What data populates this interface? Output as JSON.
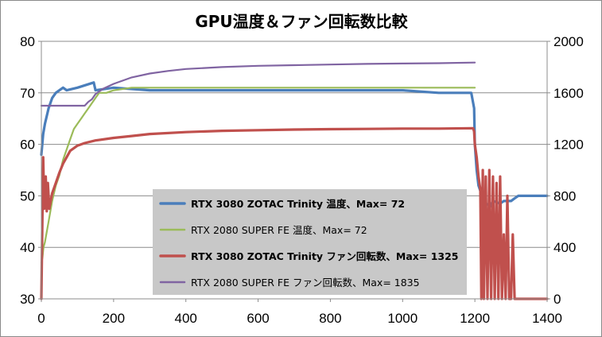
{
  "chart_data": {
    "type": "line",
    "title": "GPU温度＆ファン回転数比較",
    "x_axis": {
      "min": 0,
      "max": 1400,
      "ticks": [
        0,
        200,
        400,
        600,
        800,
        1000,
        1200,
        1400
      ]
    },
    "y_axis_left": {
      "min": 30,
      "max": 80,
      "ticks": [
        30,
        40,
        50,
        60,
        70,
        80
      ]
    },
    "y_axis_right": {
      "min": 0,
      "max": 2000,
      "ticks": [
        0,
        400,
        800,
        1200,
        1600,
        2000
      ]
    },
    "grid": "horizontal",
    "legend_position": "center",
    "series": [
      {
        "name": "RTX 3080 ZOTAC Trinity 温度、Max= 72",
        "axis": "left",
        "color": "#4a7ebb",
        "bold": true,
        "x": [
          0,
          5,
          10,
          20,
          30,
          40,
          50,
          60,
          70,
          100,
          145,
          150,
          200,
          300,
          500,
          700,
          900,
          1000,
          1100,
          1190,
          1198,
          1200,
          1205,
          1210,
          1220,
          1230,
          1245,
          1250,
          1270,
          1280,
          1300,
          1310,
          1320,
          1340,
          1360,
          1400
        ],
        "y": [
          58,
          62,
          64,
          67,
          69,
          70,
          70.5,
          71,
          70.5,
          71,
          72,
          70.5,
          71,
          70.5,
          70.5,
          70.5,
          70.5,
          70.5,
          70,
          70,
          67,
          60,
          55,
          52,
          50,
          48.5,
          48,
          49,
          48.5,
          49,
          49,
          49.5,
          50,
          50,
          50,
          50
        ]
      },
      {
        "name": "RTX 2080 SUPER FE 温度、Max= 72",
        "axis": "left",
        "color": "#9bbb59",
        "bold": false,
        "x": [
          0,
          3,
          6,
          10,
          20,
          30,
          40,
          50,
          60,
          70,
          80,
          90,
          100,
          110,
          120,
          130,
          140,
          150,
          160,
          170,
          180,
          200,
          250,
          300,
          400,
          500,
          600,
          700,
          800,
          900,
          1000,
          1100,
          1200
        ],
        "y": [
          37,
          38,
          40,
          41,
          45,
          49,
          52,
          54,
          57,
          59,
          61,
          63,
          64,
          65,
          66,
          67,
          68,
          69,
          70,
          70,
          70,
          70.5,
          71,
          71,
          71,
          71,
          71,
          71,
          71,
          71,
          71,
          71,
          71
        ]
      },
      {
        "name": "RTX 3080 ZOTAC Trinity ファン回転数、Max= 1325",
        "axis": "right",
        "color": "#c0504d",
        "bold": true,
        "x": [
          0,
          5,
          8,
          12,
          15,
          18,
          22,
          25,
          30,
          40,
          50,
          60,
          70,
          80,
          100,
          120,
          150,
          200,
          250,
          300,
          400,
          500,
          600,
          700,
          800,
          900,
          1000,
          1100,
          1195,
          1198,
          1200,
          1205,
          1210,
          1215,
          1218,
          1222,
          1225,
          1230,
          1235,
          1240,
          1245,
          1250,
          1255,
          1260,
          1265,
          1270,
          1275,
          1280,
          1285,
          1290,
          1295,
          1300,
          1305,
          1310,
          1400
        ],
        "y": [
          0,
          1100,
          700,
          950,
          680,
          900,
          700,
          750,
          820,
          900,
          980,
          1050,
          1100,
          1150,
          1190,
          1210,
          1230,
          1250,
          1265,
          1280,
          1295,
          1305,
          1310,
          1315,
          1318,
          1320,
          1322,
          1322,
          1325,
          1300,
          1200,
          1100,
          950,
          850,
          0,
          1000,
          0,
          950,
          0,
          1000,
          0,
          950,
          0,
          900,
          0,
          950,
          0,
          500,
          0,
          800,
          0,
          0,
          500,
          0,
          0
        ]
      },
      {
        "name": "RTX 2080 SUPER FE ファン回転数、Max= 1835",
        "axis": "right",
        "color": "#8064a2",
        "bold": false,
        "x": [
          0,
          30,
          60,
          90,
          120,
          130,
          140,
          150,
          170,
          200,
          250,
          300,
          350,
          400,
          500,
          600,
          700,
          800,
          900,
          1000,
          1100,
          1200
        ],
        "y": [
          1500,
          1500,
          1500,
          1500,
          1500,
          1530,
          1550,
          1590,
          1630,
          1670,
          1720,
          1750,
          1770,
          1785,
          1800,
          1810,
          1815,
          1820,
          1825,
          1828,
          1830,
          1835
        ]
      }
    ]
  }
}
